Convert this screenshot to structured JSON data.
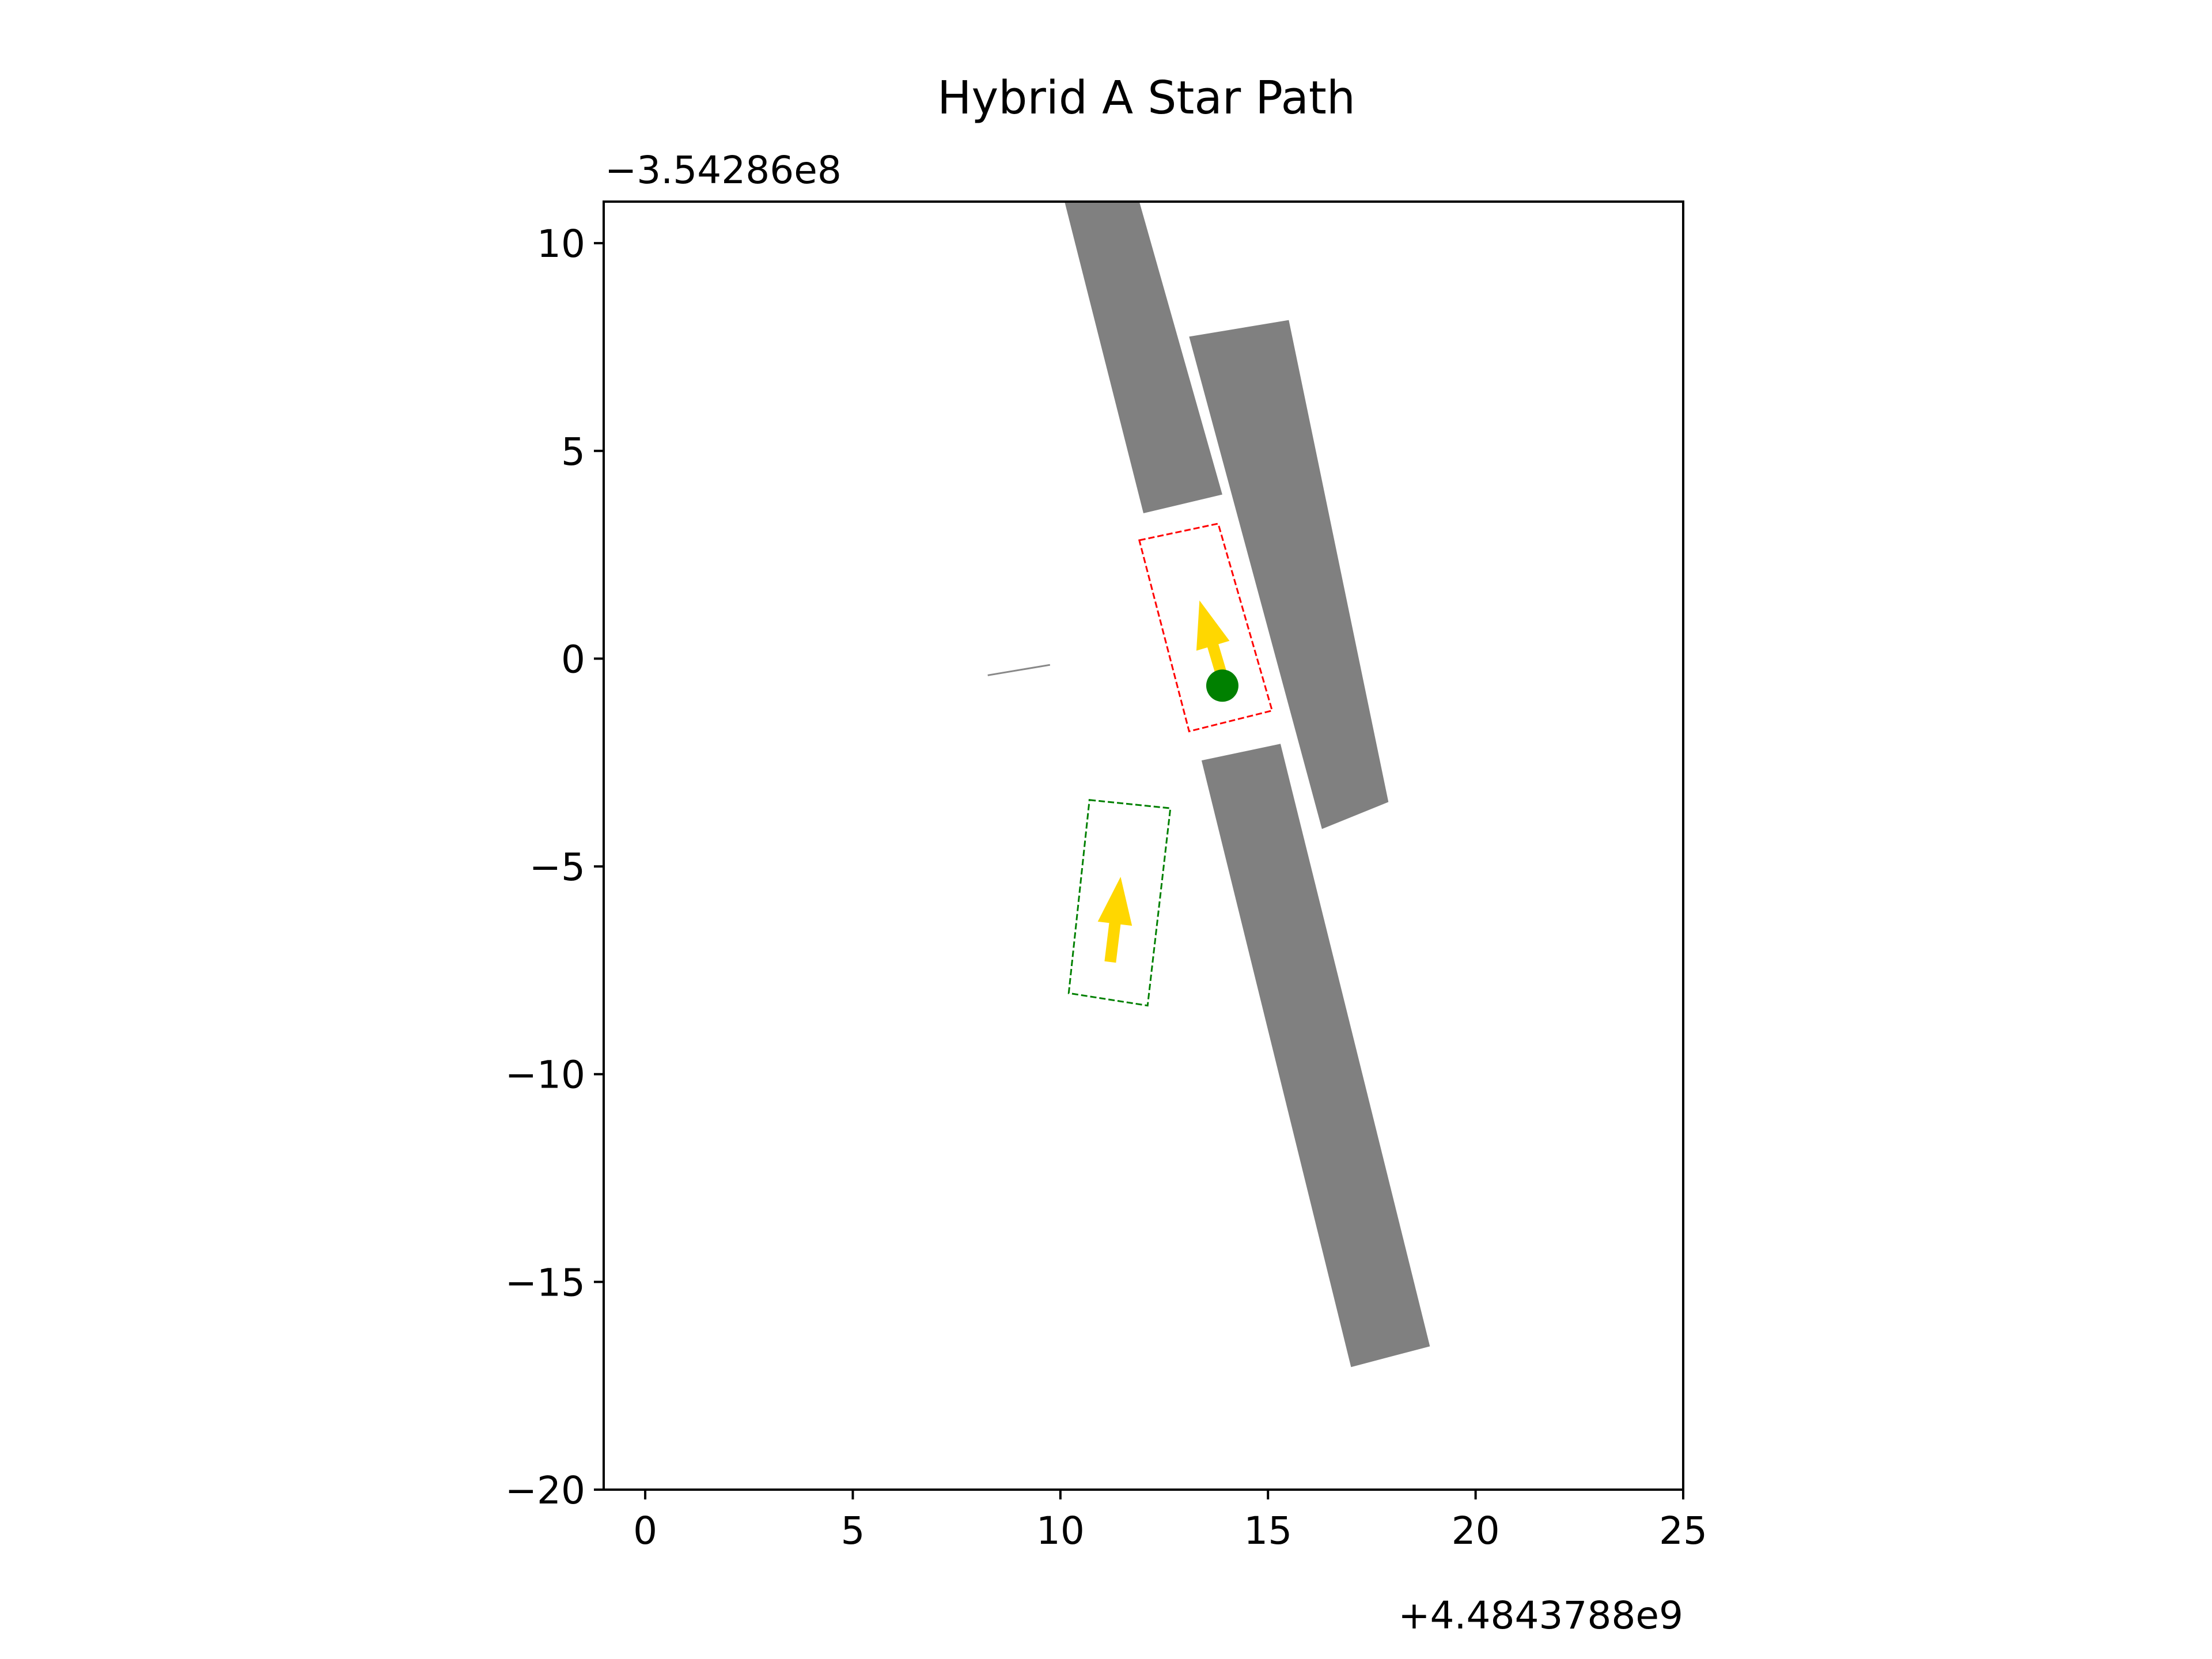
{
  "chart_data": {
    "type": "scatter",
    "title": "Hybrid A Star Path",
    "xlabel": "",
    "ylabel": "",
    "x_offset_label": "+4.4843788e9",
    "y_offset_label": "−3.54286e8",
    "xlim": [
      -1,
      25
    ],
    "ylim": [
      -20,
      11
    ],
    "xticks": [
      0,
      5,
      10,
      15,
      20,
      25
    ],
    "xtick_labels": [
      "0",
      "5",
      "10",
      "15",
      "20",
      "25"
    ],
    "yticks": [
      10,
      5,
      0,
      -5,
      -10,
      -15,
      -20
    ],
    "ytick_labels": [
      "10",
      "5",
      "0",
      "−5",
      "−10",
      "−15",
      "−20"
    ],
    "grid": false,
    "obstacles": [
      {
        "name": "upper-left",
        "color": "#808080",
        "points": [
          [
            10.1,
            11.0
          ],
          [
            11.9,
            11.0
          ],
          [
            13.9,
            3.95
          ],
          [
            12.0,
            3.5
          ]
        ]
      },
      {
        "name": "upper-right",
        "color": "#808080",
        "points": [
          [
            13.1,
            7.75
          ],
          [
            15.5,
            8.15
          ],
          [
            17.9,
            -3.45
          ],
          [
            16.3,
            -4.1
          ]
        ]
      },
      {
        "name": "lower",
        "color": "#808080",
        "points": [
          [
            13.4,
            -2.45
          ],
          [
            15.3,
            -2.05
          ],
          [
            18.9,
            -16.55
          ],
          [
            17.0,
            -17.05
          ]
        ]
      }
    ],
    "current_footprint": {
      "color": "#ff0000",
      "points": [
        [
          11.9,
          2.85
        ],
        [
          13.8,
          3.25
        ],
        [
          15.1,
          -1.25
        ],
        [
          13.1,
          -1.75
        ]
      ]
    },
    "current_heading": {
      "color": "#ffd700",
      "from": [
        13.9,
        -0.45
      ],
      "to": [
        13.35,
        1.4
      ]
    },
    "current_position": {
      "color": "#008000",
      "x": 13.9,
      "y": -0.65
    },
    "goal_footprint": {
      "color": "#008000",
      "points": [
        [
          10.7,
          -3.4
        ],
        [
          12.65,
          -3.6
        ],
        [
          12.1,
          -8.35
        ],
        [
          10.2,
          -8.05
        ]
      ]
    },
    "goal_heading": {
      "color": "#ffd700",
      "from": [
        11.2,
        -7.3
      ],
      "to": [
        11.45,
        -5.25
      ]
    },
    "path_segment": {
      "color": "#888888",
      "points": [
        [
          8.25,
          -0.4
        ],
        [
          9.75,
          -0.15
        ]
      ]
    }
  }
}
